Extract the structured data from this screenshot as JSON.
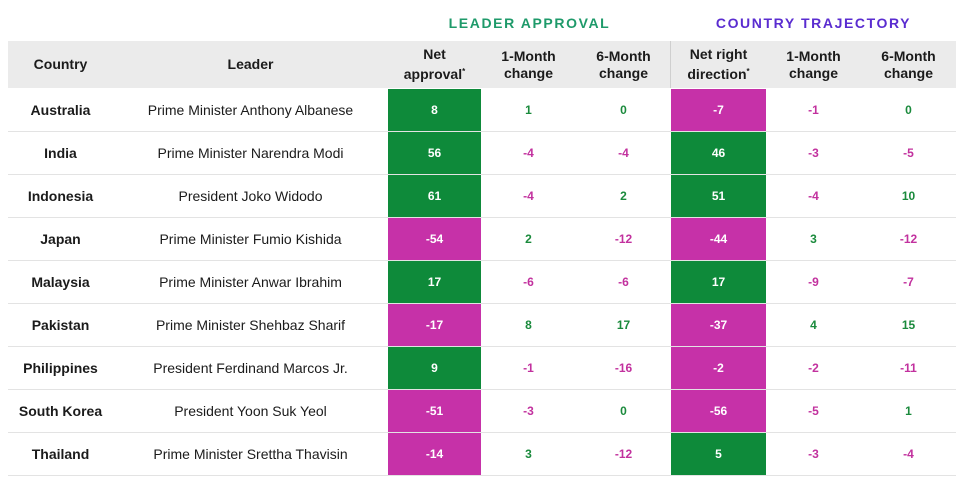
{
  "colors": {
    "leader_header": "#1e9a6a",
    "country_header": "#5a2cd0",
    "positive": "#0e8a3a",
    "negative": "#c631a8",
    "positive_text": "#1a8a3c",
    "negative_text": "#c2319e",
    "header_bg": "#ebebeb"
  },
  "group_titles": {
    "leader": "LEADER APPROVAL",
    "country": "COUNTRY TRAJECTORY"
  },
  "chart_data": {
    "type": "table",
    "columns": [
      "Country",
      "Leader",
      "Net approval*",
      "1-Month change",
      "6-Month change",
      "Net right direction*",
      "1-Month change",
      "6-Month change"
    ],
    "rows": [
      {
        "country": "Australia",
        "leader": "Prime Minister Anthony Albanese",
        "net_approval": 8,
        "la_1m": 1,
        "la_6m": 0,
        "net_right": -7,
        "ct_1m": -1,
        "ct_6m": 0
      },
      {
        "country": "India",
        "leader": "Prime Minister Narendra Modi",
        "net_approval": 56,
        "la_1m": -4,
        "la_6m": -4,
        "net_right": 46,
        "ct_1m": -3,
        "ct_6m": -5
      },
      {
        "country": "Indonesia",
        "leader": "President Joko Widodo",
        "net_approval": 61,
        "la_1m": -4,
        "la_6m": 2,
        "net_right": 51,
        "ct_1m": -4,
        "ct_6m": 10
      },
      {
        "country": "Japan",
        "leader": "Prime Minister Fumio Kishida",
        "net_approval": -54,
        "la_1m": 2,
        "la_6m": -12,
        "net_right": -44,
        "ct_1m": 3,
        "ct_6m": -12
      },
      {
        "country": "Malaysia",
        "leader": "Prime Minister Anwar Ibrahim",
        "net_approval": 17,
        "la_1m": -6,
        "la_6m": -6,
        "net_right": 17,
        "ct_1m": -9,
        "ct_6m": -7
      },
      {
        "country": "Pakistan",
        "leader": "Prime Minister Shehbaz Sharif",
        "net_approval": -17,
        "la_1m": 8,
        "la_6m": 17,
        "net_right": -37,
        "ct_1m": 4,
        "ct_6m": 15
      },
      {
        "country": "Philippines",
        "leader": "President Ferdinand Marcos Jr.",
        "net_approval": 9,
        "la_1m": -1,
        "la_6m": -16,
        "net_right": -2,
        "ct_1m": -2,
        "ct_6m": -11
      },
      {
        "country": "South Korea",
        "leader": "President Yoon Suk Yeol",
        "net_approval": -51,
        "la_1m": -3,
        "la_6m": 0,
        "net_right": -56,
        "ct_1m": -5,
        "ct_6m": 1
      },
      {
        "country": "Thailand",
        "leader": "Prime Minister Srettha Thavisin",
        "net_approval": -14,
        "la_1m": 3,
        "la_6m": -12,
        "net_right": 5,
        "ct_1m": -3,
        "ct_6m": -4
      }
    ]
  }
}
